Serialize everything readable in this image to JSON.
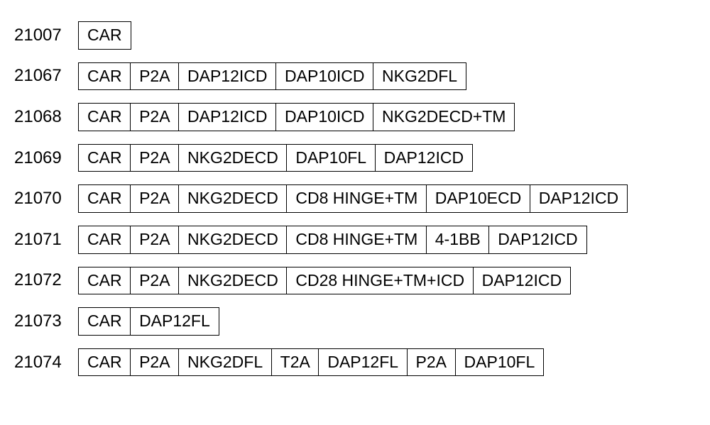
{
  "diagram": {
    "type": "block-sequence",
    "background_color": "#ffffff",
    "border_color": "#000000",
    "text_color": "#000000",
    "label_fontsize": 24,
    "segment_fontsize": 23,
    "border_width": 1.5,
    "row_gap": 18,
    "label_width": 90,
    "constructs": [
      {
        "id": "21007",
        "segments": [
          "CAR"
        ]
      },
      {
        "id": "21067",
        "segments": [
          "CAR",
          "P2A",
          "DAP12ICD",
          "DAP10ICD",
          "NKG2DFL"
        ]
      },
      {
        "id": "21068",
        "segments": [
          "CAR",
          "P2A",
          "DAP12ICD",
          "DAP10ICD",
          "NKG2DECD+TM"
        ]
      },
      {
        "id": "21069",
        "segments": [
          "CAR",
          "P2A",
          "NKG2DECD",
          "DAP10FL",
          "DAP12ICD"
        ]
      },
      {
        "id": "21070",
        "segments": [
          "CAR",
          "P2A",
          "NKG2DECD",
          "CD8 HINGE+TM",
          "DAP10ECD",
          "DAP12ICD"
        ]
      },
      {
        "id": "21071",
        "segments": [
          "CAR",
          "P2A",
          "NKG2DECD",
          "CD8 HINGE+TM",
          "4-1BB",
          "DAP12ICD"
        ]
      },
      {
        "id": "21072",
        "segments": [
          "CAR",
          "P2A",
          "NKG2DECD",
          "CD28 HINGE+TM+ICD",
          "DAP12ICD"
        ]
      },
      {
        "id": "21073",
        "segments": [
          "CAR",
          "DAP12FL"
        ]
      },
      {
        "id": "21074",
        "segments": [
          "CAR",
          "P2A",
          "NKG2DFL",
          "T2A",
          "DAP12FL",
          "P2A",
          "DAP10FL"
        ]
      }
    ]
  }
}
